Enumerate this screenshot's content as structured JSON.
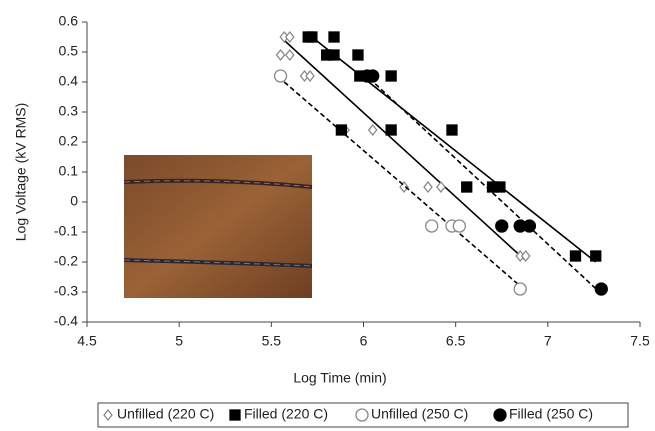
{
  "chart_data": {
    "type": "scatter",
    "x_label": "Log Time (min)",
    "y_label": "Log Voltage (kV RMS)",
    "xlim": [
      4.5,
      7.5
    ],
    "xticks": [
      4.5,
      5,
      5.5,
      6,
      6.5,
      7,
      7.5
    ],
    "ylim": [
      -0.4,
      0.6
    ],
    "yticks": [
      0.6,
      0.5,
      0.4,
      0.3,
      0.2,
      0.1,
      0,
      -0.1,
      -0.2,
      -0.3,
      -0.4
    ],
    "legend": "bottom",
    "series": [
      {
        "name": "Unfilled (220 C)",
        "color": "#888888",
        "marker": "diamond",
        "filled": false,
        "trend_dash": false,
        "x": [
          5.57,
          5.6,
          5.55,
          5.6,
          5.68,
          5.71,
          5.9,
          6.05,
          6.22,
          6.35,
          6.42,
          6.85,
          6.88
        ],
        "values": [
          0.55,
          0.55,
          0.49,
          0.49,
          0.42,
          0.42,
          0.24,
          0.24,
          0.05,
          0.05,
          0.05,
          -0.18,
          -0.18
        ],
        "trend_x": [
          5.55,
          6.87
        ],
        "trend_y": [
          0.55,
          -0.19
        ]
      },
      {
        "name": "Filled (220 C)",
        "color": "#000000",
        "marker": "square",
        "filled": true,
        "trend_dash": false,
        "x": [
          5.7,
          5.72,
          5.84,
          5.8,
          5.84,
          5.97,
          5.98,
          6.15,
          5.88,
          6.15,
          6.48,
          6.56,
          6.7,
          6.74,
          7.15,
          7.26
        ],
        "values": [
          0.55,
          0.55,
          0.55,
          0.49,
          0.49,
          0.49,
          0.42,
          0.42,
          0.24,
          0.24,
          0.24,
          0.05,
          0.05,
          0.05,
          -0.18,
          -0.18
        ],
        "trend_x": [
          5.72,
          7.26
        ],
        "trend_y": [
          0.55,
          -0.2
        ]
      },
      {
        "name": "Unfilled (250 C)",
        "color": "#888888",
        "marker": "circle",
        "filled": false,
        "trend_dash": true,
        "x": [
          5.55,
          6.37,
          6.48,
          6.52,
          6.85
        ],
        "values": [
          0.42,
          -0.08,
          -0.08,
          -0.08,
          -0.29
        ],
        "trend_x": [
          5.57,
          6.85
        ],
        "trend_y": [
          0.4,
          -0.28
        ]
      },
      {
        "name": "Filled (250 C)",
        "color": "#000000",
        "marker": "circle",
        "filled": true,
        "trend_dash": true,
        "x": [
          6.02,
          6.05,
          6.75,
          6.85,
          6.9,
          7.29
        ],
        "values": [
          0.42,
          0.42,
          -0.08,
          -0.08,
          -0.08,
          -0.29
        ],
        "trend_x": [
          6.0,
          7.28
        ],
        "trend_y": [
          0.43,
          -0.3
        ]
      }
    ]
  }
}
